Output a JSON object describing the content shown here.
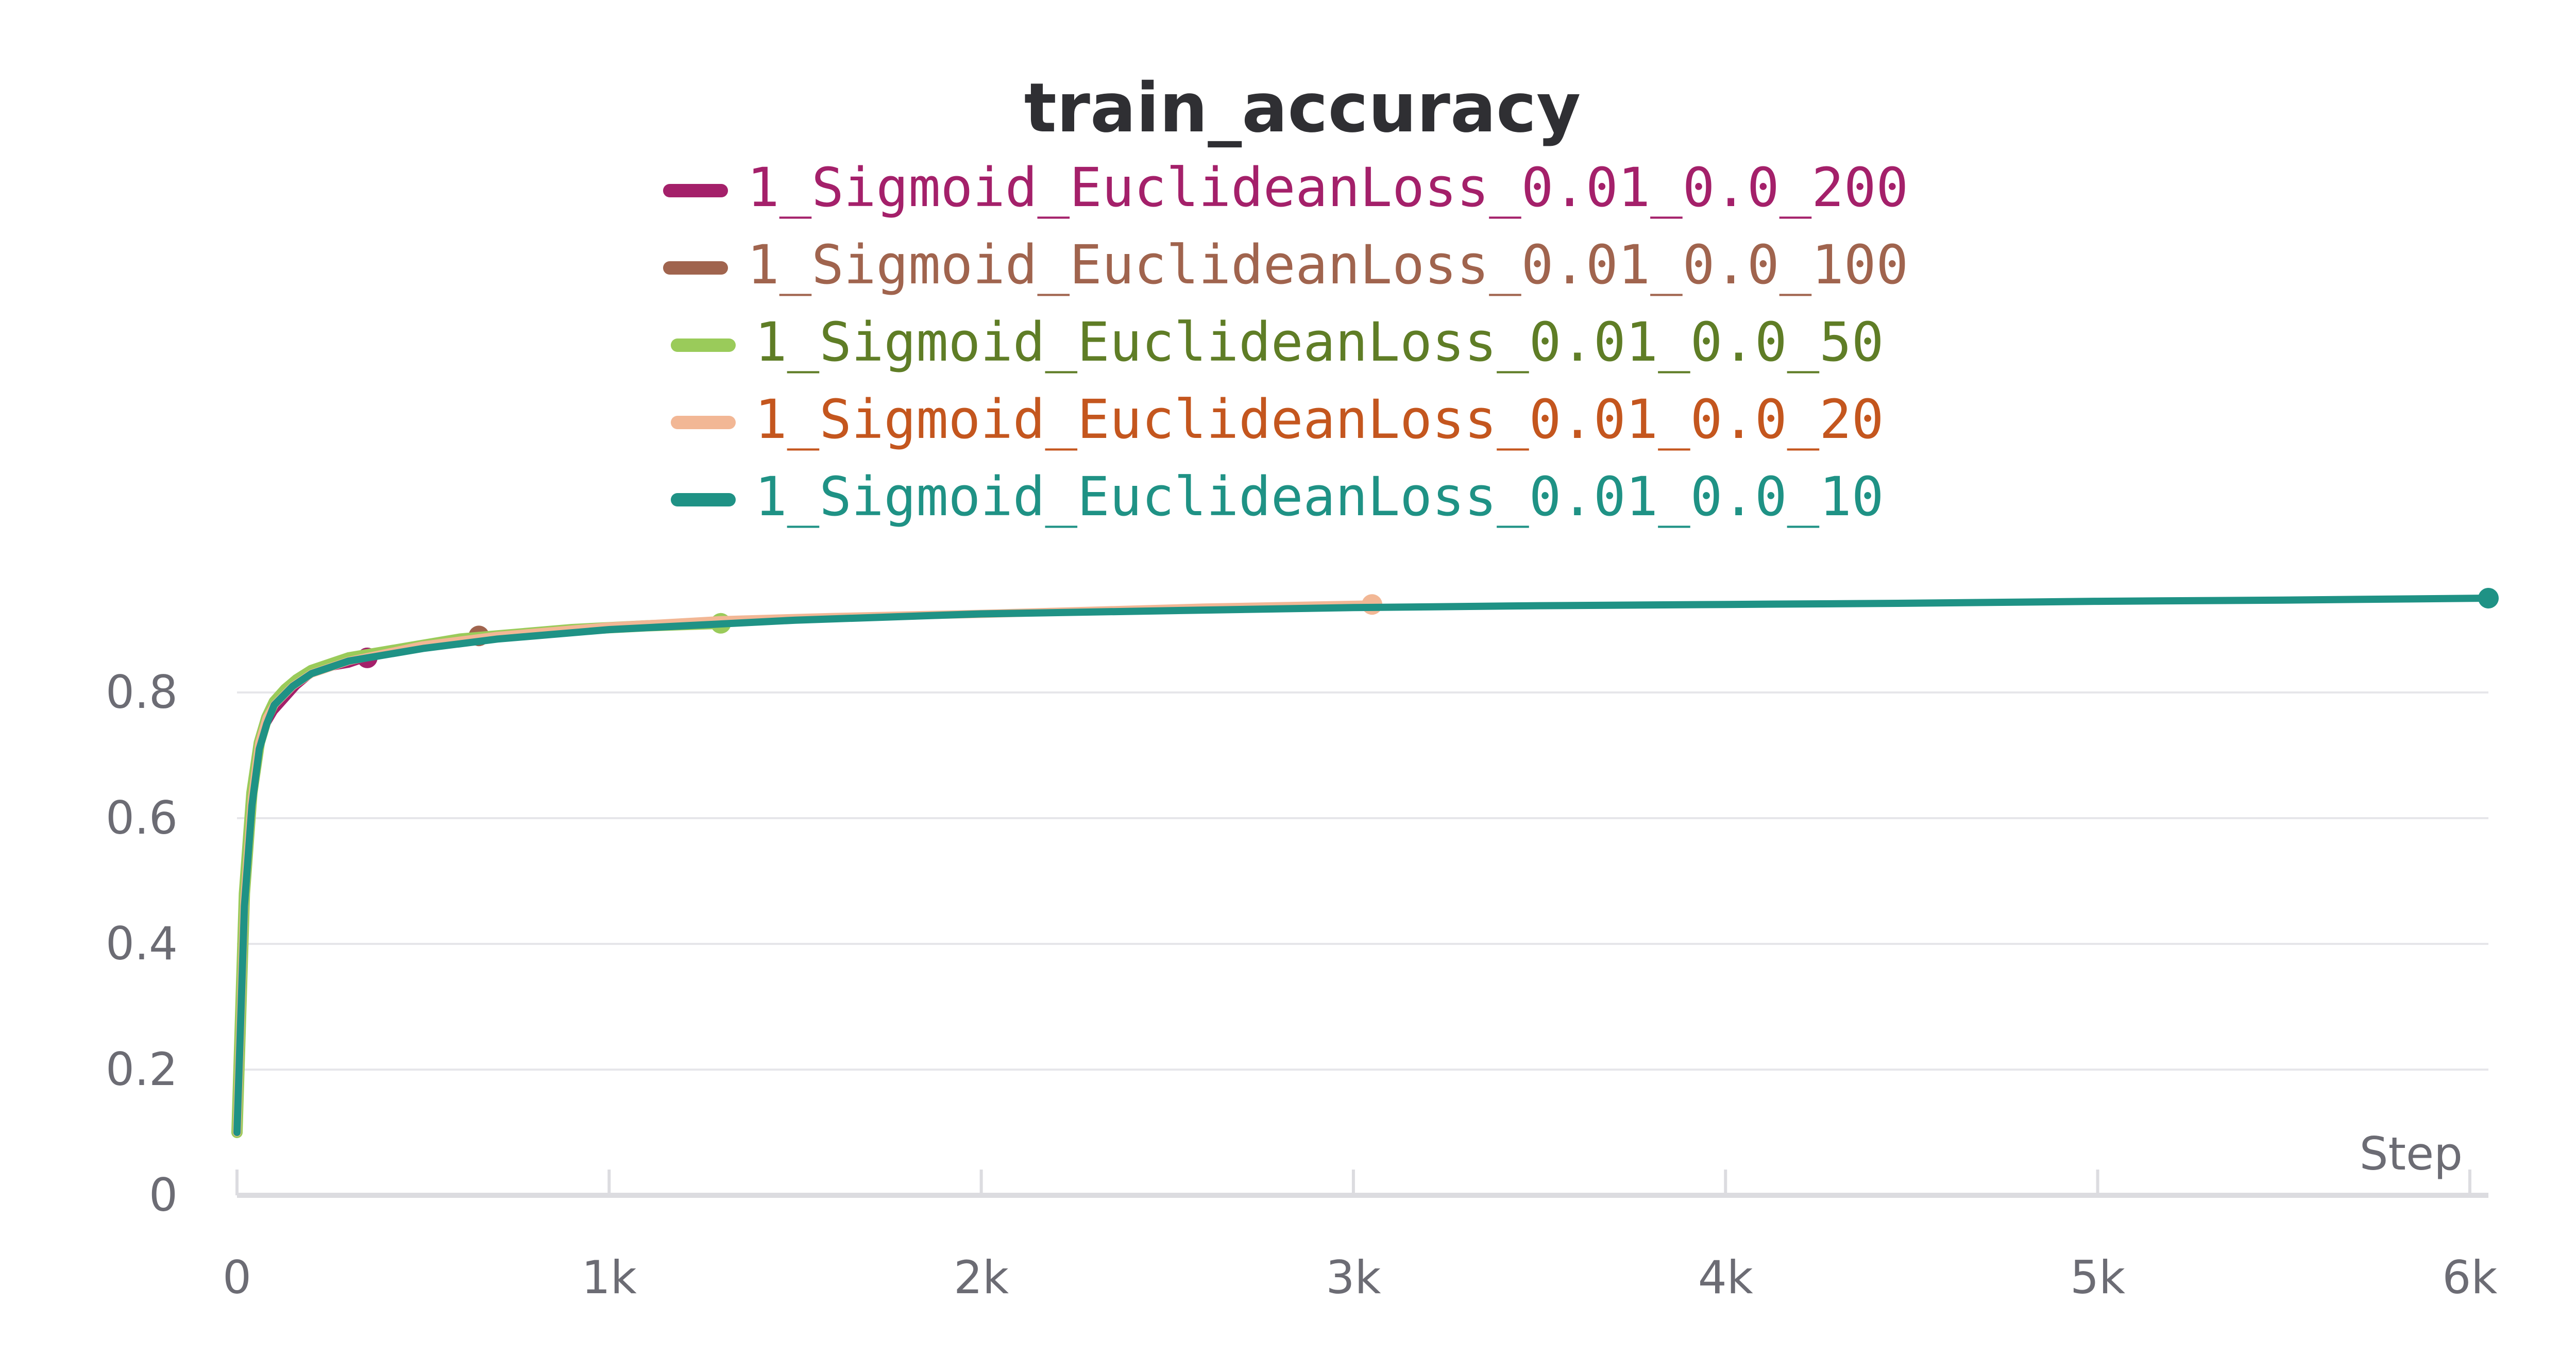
{
  "chart_data": {
    "type": "line",
    "title": "train_accuracy",
    "xlabel": "Step",
    "ylabel": "",
    "xlim": [
      0,
      6050
    ],
    "ylim": [
      0,
      1.0
    ],
    "xticks": [
      0,
      1000,
      2000,
      3000,
      4000,
      5000,
      6000
    ],
    "xtick_labels": [
      "0",
      "1k",
      "2k",
      "3k",
      "4k",
      "5k",
      "6k"
    ],
    "yticks": [
      0,
      0.2,
      0.4,
      0.6,
      0.8
    ],
    "ytick_labels": [
      "0",
      "0.2",
      "0.4",
      "0.6",
      "0.8"
    ],
    "grid": true,
    "legend_position": "top-center",
    "series": [
      {
        "name": "1_Sigmoid_EuclideanLoss_0.01_0.0_200",
        "color": "#a4206a",
        "text_color": "#a4206a",
        "x": [
          0,
          20,
          40,
          60,
          80,
          100,
          130,
          160,
          200,
          250,
          300,
          350
        ],
        "y": [
          0.1,
          0.45,
          0.62,
          0.71,
          0.75,
          0.77,
          0.79,
          0.81,
          0.83,
          0.84,
          0.845,
          0.855
        ]
      },
      {
        "name": "1_Sigmoid_EuclideanLoss_0.01_0.0_100",
        "color": "#a0644e",
        "text_color": "#a0644e",
        "x": [
          0,
          20,
          40,
          60,
          80,
          100,
          130,
          160,
          200,
          250,
          300,
          400,
          500,
          600,
          650
        ],
        "y": [
          0.1,
          0.46,
          0.63,
          0.72,
          0.76,
          0.78,
          0.8,
          0.815,
          0.83,
          0.845,
          0.855,
          0.865,
          0.875,
          0.885,
          0.89
        ]
      },
      {
        "name": "1_Sigmoid_EuclideanLoss_0.01_0.0_50",
        "color": "#9acb5a",
        "text_color": "#5f7d26",
        "x": [
          0,
          20,
          40,
          60,
          80,
          100,
          130,
          160,
          200,
          250,
          300,
          400,
          500,
          600,
          700,
          800,
          900,
          1000,
          1100,
          1200,
          1300
        ],
        "y": [
          0.1,
          0.48,
          0.64,
          0.72,
          0.76,
          0.785,
          0.805,
          0.82,
          0.835,
          0.845,
          0.855,
          0.865,
          0.875,
          0.885,
          0.89,
          0.895,
          0.9,
          0.903,
          0.906,
          0.908,
          0.91
        ]
      },
      {
        "name": "1_Sigmoid_EuclideanLoss_0.01_0.0_20",
        "color": "#f2b795",
        "text_color": "#c4561e",
        "x": [
          0,
          20,
          40,
          60,
          80,
          100,
          150,
          200,
          300,
          500,
          700,
          1000,
          1300,
          1600,
          2000,
          2300,
          2600,
          3050
        ],
        "y": [
          0.1,
          0.47,
          0.63,
          0.72,
          0.76,
          0.78,
          0.81,
          0.83,
          0.85,
          0.875,
          0.89,
          0.905,
          0.915,
          0.92,
          0.925,
          0.93,
          0.935,
          0.94
        ]
      },
      {
        "name": "1_Sigmoid_EuclideanLoss_0.01_0.0_10",
        "color": "#1f9285",
        "text_color": "#1f9285",
        "x": [
          0,
          20,
          40,
          60,
          80,
          100,
          150,
          200,
          300,
          500,
          700,
          1000,
          1500,
          2000,
          2500,
          3000,
          3500,
          4000,
          4500,
          5000,
          5500,
          6050
        ],
        "y": [
          0.1,
          0.46,
          0.62,
          0.71,
          0.75,
          0.78,
          0.81,
          0.83,
          0.85,
          0.87,
          0.885,
          0.9,
          0.915,
          0.925,
          0.93,
          0.935,
          0.938,
          0.94,
          0.942,
          0.945,
          0.947,
          0.95
        ]
      }
    ]
  }
}
